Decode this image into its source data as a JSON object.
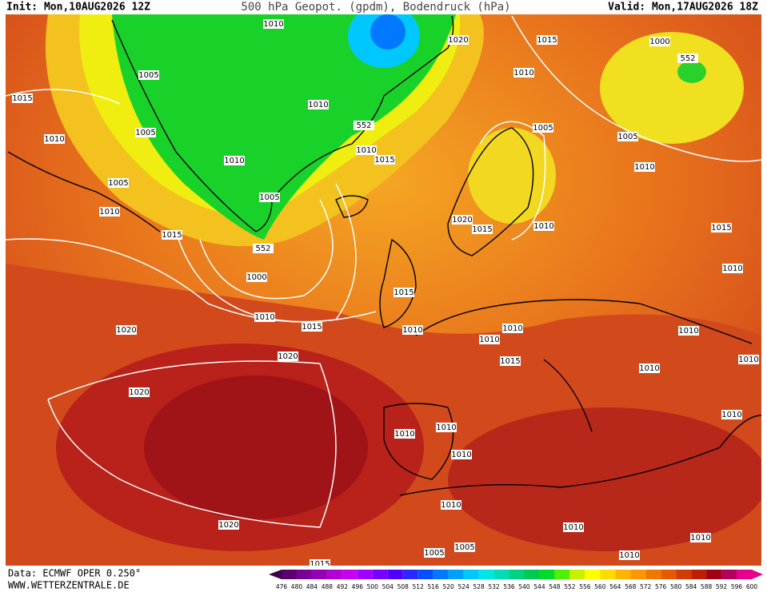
{
  "header": {
    "init": "Init: Mon,10AUG2026 12Z",
    "title": "500 hPa Geopot. (gpdm), Bodendruck (hPa)",
    "valid": "Valid: Mon,17AUG2026 18Z"
  },
  "footer": {
    "source": "Data: ECMWF OPER 0.250°",
    "website": "WWW.WETTERZENTRALE.DE"
  },
  "isobar_labels": [
    1015,
    1010,
    1005,
    1005,
    1005,
    1010,
    1015,
    1000,
    552,
    1010,
    1005,
    1010,
    552,
    1010,
    1015,
    1010,
    1020,
    1015,
    1010,
    1000,
    552,
    1005,
    1005,
    1010,
    1020,
    1015,
    1010,
    1015,
    1010,
    1015,
    1010,
    1015,
    1020,
    1010,
    1010,
    1010,
    1010,
    1015,
    1010,
    1010,
    1020,
    1020,
    1010,
    1010,
    1010,
    1010,
    1010,
    1010,
    1010,
    1020,
    1005,
    1005,
    1010,
    1015
  ],
  "colorbar": {
    "values": [
      476,
      480,
      484,
      488,
      492,
      496,
      500,
      504,
      508,
      512,
      516,
      520,
      524,
      528,
      532,
      536,
      540,
      544,
      548,
      552,
      556,
      560,
      564,
      568,
      572,
      576,
      580,
      584,
      588,
      592,
      596,
      600
    ],
    "colors": [
      "#3c0046",
      "#5a006e",
      "#780096",
      "#9600b4",
      "#b400d2",
      "#c800f0",
      "#a000ff",
      "#7800ff",
      "#5000ff",
      "#2828ff",
      "#0050ff",
      "#0078ff",
      "#00a0ff",
      "#00c8ff",
      "#00e6e6",
      "#00dcb4",
      "#00d282",
      "#00c850",
      "#00dc28",
      "#50f000",
      "#c8f000",
      "#ffff00",
      "#ffdc00",
      "#ffb400",
      "#ff9600",
      "#f07800",
      "#e65a00",
      "#d23c00",
      "#be1e00",
      "#a00014",
      "#b4005a",
      "#e6008c"
    ]
  }
}
